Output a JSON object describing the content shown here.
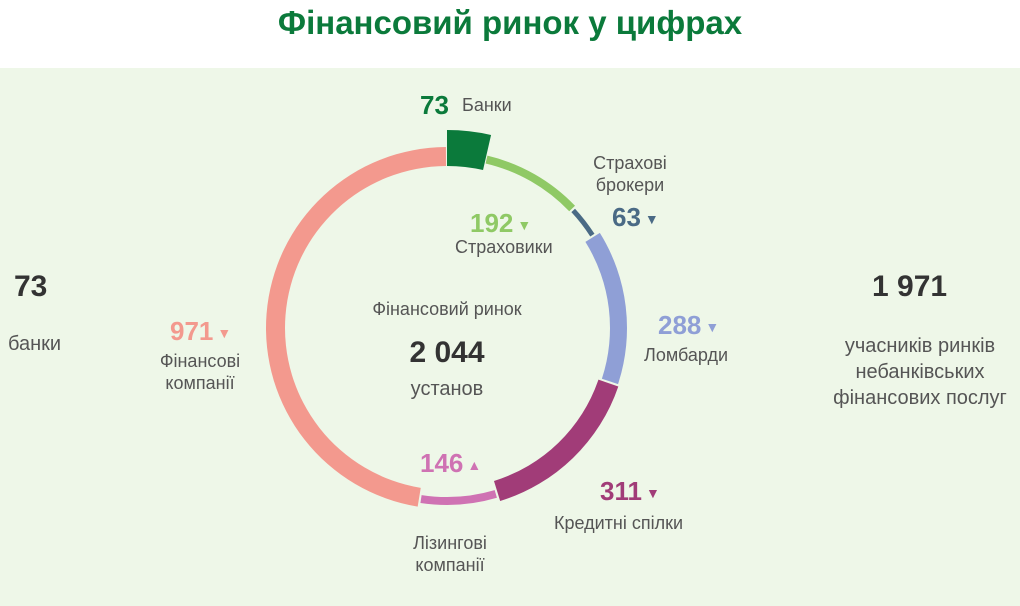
{
  "title": "Фінансовий ринок у цифрах",
  "left_stat": {
    "value": "73",
    "label": "банки"
  },
  "right_stat": {
    "value": "1 971",
    "label": "учасників ринків небанківських фінансових послуг"
  },
  "chart_data": {
    "type": "pie",
    "center_title": "Фінансовий ринок",
    "center_value": "2 044",
    "center_unit": "установ",
    "total": 2044,
    "segments": [
      {
        "name": "Банки",
        "value": 73,
        "color": "#0b7a3b",
        "trend": "none"
      },
      {
        "name": "Страховики",
        "value": 192,
        "color": "#8fc965",
        "trend": "down"
      },
      {
        "name": "Страхові брокери",
        "value": 63,
        "color": "#4a6a85",
        "trend": "down"
      },
      {
        "name": "Ломбарди",
        "value": 288,
        "color": "#8f9fd6",
        "trend": "down"
      },
      {
        "name": "Кредитні спілки",
        "value": 311,
        "color": "#a13c78",
        "trend": "down"
      },
      {
        "name": "Лізингові компанії",
        "value": 146,
        "color": "#cf72b3",
        "trend": "up"
      },
      {
        "name": "Фінансові компанії",
        "value": 971,
        "color": "#f3998e",
        "trend": "down"
      }
    ]
  },
  "icons": {
    "down": "▼",
    "up": "▲"
  }
}
